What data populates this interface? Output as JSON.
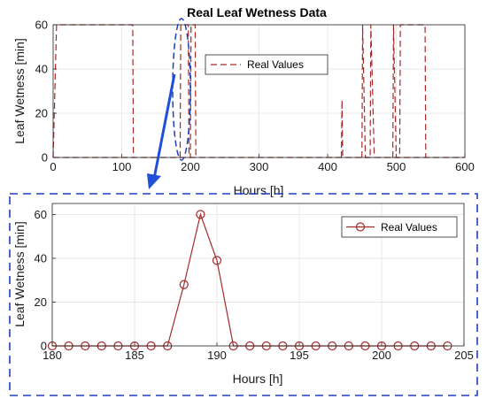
{
  "colors": {
    "series": "#a52a2a",
    "zoom_box": "#1f3fbf",
    "arrow": "#1f4fd6",
    "grid": "#e3e3e3"
  },
  "chart_data": [
    {
      "type": "line",
      "title": "Real Leaf Wetness Data",
      "xlabel": "Hours [h]",
      "ylabel": "Leaf Wetness [min]",
      "xlim": [
        0,
        600
      ],
      "ylim": [
        0,
        60
      ],
      "xticks": [
        "0",
        "100",
        "200",
        "300",
        "400",
        "500",
        "600"
      ],
      "yticks": [
        "0",
        "20",
        "40",
        "60"
      ],
      "grid": true,
      "legend": {
        "position": "top-right",
        "entries": [
          "Real Values"
        ]
      },
      "series": [
        {
          "name": "Real Values",
          "line_style": "dashed",
          "segments": [
            [
              [
                0,
                0
              ],
              [
                5,
                60
              ],
              [
                116,
                60
              ],
              [
                117,
                0
              ]
            ],
            [
              [
                185,
                0
              ],
              [
                186,
                60
              ],
              [
                197,
                60
              ],
              [
                198,
                0
              ],
              [
                200,
                0
              ],
              [
                201,
                60
              ],
              [
                207,
                60
              ],
              [
                208,
                0
              ]
            ],
            [
              [
                420,
                0
              ],
              [
                421,
                26
              ],
              [
                422,
                0
              ]
            ],
            [
              [
                450,
                0
              ],
              [
                451,
                60
              ],
              [
                455,
                0
              ],
              [
                462,
                0
              ],
              [
                463,
                60
              ],
              [
                468,
                0
              ]
            ],
            [
              [
                495,
                0
              ],
              [
                496,
                60
              ],
              [
                500,
                0
              ],
              [
                505,
                0
              ],
              [
                506,
                60
              ],
              [
                542,
                60
              ],
              [
                543,
                0
              ]
            ]
          ]
        }
      ]
    },
    {
      "type": "line",
      "title": "",
      "xlabel": "Hours [h]",
      "ylabel": "Leaf Wetness [min]",
      "xlim": [
        180,
        205
      ],
      "ylim": [
        0,
        65
      ],
      "xticks": [
        "180",
        "185",
        "190",
        "195",
        "200",
        "205"
      ],
      "yticks": [
        "0",
        "20",
        "40",
        "60"
      ],
      "grid": true,
      "legend": {
        "position": "top-right",
        "entries": [
          "Real Values"
        ]
      },
      "series": [
        {
          "name": "Real Values",
          "marker": "circle",
          "x": [
            180,
            181,
            182,
            183,
            184,
            185,
            186,
            187,
            188,
            189,
            190,
            191,
            192,
            193,
            194,
            195,
            196,
            197,
            198,
            199,
            200,
            201,
            202,
            203,
            204
          ],
          "y": [
            0,
            0,
            0,
            0,
            0,
            0,
            0,
            0,
            28,
            60,
            39,
            0,
            0,
            0,
            0,
            0,
            0,
            0,
            0,
            0,
            0,
            0,
            0,
            0,
            0
          ]
        }
      ]
    }
  ]
}
